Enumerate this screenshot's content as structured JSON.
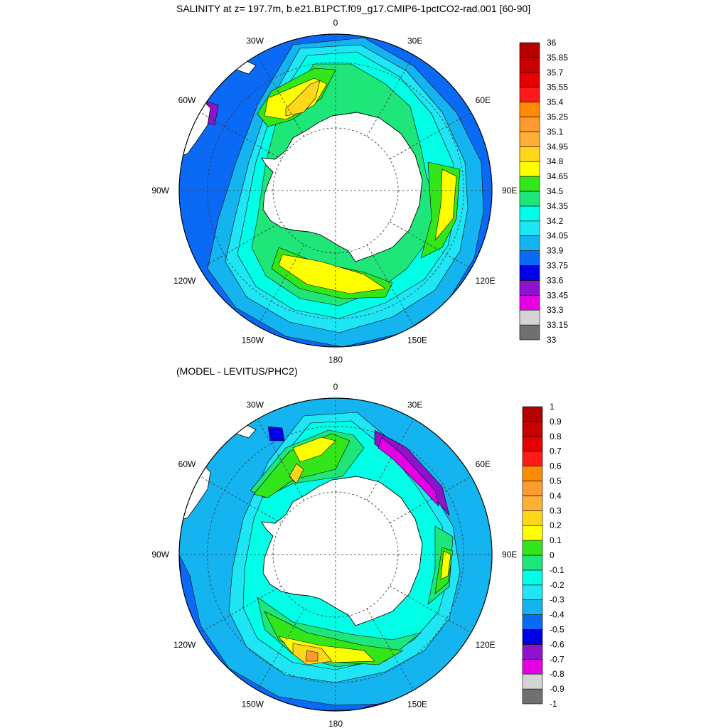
{
  "chart_data": [
    {
      "type": "heatmap",
      "projection": "south-polar-stereographic",
      "title": "SALINITY at z= 197.7m, b.e21.B1PCT.f09_g17.CMIP6-1pctCO2-rad.001 [60-90]",
      "lon_labels": [
        "0",
        "30E",
        "60E",
        "90E",
        "120E",
        "150E",
        "180",
        "150W",
        "120W",
        "90W",
        "60W",
        "30W"
      ],
      "colorbar": {
        "levels": [
          "33",
          "33.15",
          "33.3",
          "33.45",
          "33.6",
          "33.75",
          "33.9",
          "34.05",
          "34.2",
          "34.35",
          "34.5",
          "34.65",
          "34.8",
          "34.95",
          "35.1",
          "35.25",
          "35.4",
          "35.55",
          "35.7",
          "35.85",
          "36"
        ],
        "colors": [
          "#707070",
          "#d4d4d4",
          "#e600e6",
          "#8f12cf",
          "#0000e6",
          "#0a6af5",
          "#14b4f0",
          "#1ee6f5",
          "#00ffe6",
          "#1ee678",
          "#33e61a",
          "#ffff00",
          "#ffd71a",
          "#ffaf33",
          "#ff9a2e",
          "#ff8c00",
          "#ff1a1a",
          "#e60000",
          "#c80000",
          "#b40000"
        ],
        "range": [
          33,
          36
        ]
      },
      "legend_placement": "right",
      "grid": true,
      "field_summary": {
        "antarctic_shelf": "34.2",
        "weddell_gyre_max": "34.95",
        "ross_gyre": "34.65-34.8",
        "northern_rim": "33.75-33.9",
        "minimum_near_south_america": "33.45"
      }
    },
    {
      "type": "heatmap",
      "projection": "south-polar-stereographic",
      "title": "(MODEL - LEVITUS/PHC2)",
      "lon_labels": [
        "0",
        "30E",
        "60E",
        "90E",
        "120E",
        "150E",
        "180",
        "150W",
        "120W",
        "90W",
        "60W",
        "30W"
      ],
      "colorbar": {
        "levels": [
          "-1",
          "-0.9",
          "-0.8",
          "-0.7",
          "-0.6",
          "-0.5",
          "-0.4",
          "-0.3",
          "-0.2",
          "-0.1",
          "0",
          "0.1",
          "0.2",
          "0.3",
          "0.4",
          "0.5",
          "0.6",
          "0.7",
          "0.8",
          "0.9",
          "1"
        ],
        "colors": [
          "#707070",
          "#d4d4d4",
          "#e600e6",
          "#8f12cf",
          "#0000e6",
          "#0a6af5",
          "#14b4f0",
          "#1ee6f5",
          "#00ffe6",
          "#1ee678",
          "#33e61a",
          "#ffff00",
          "#ffd71a",
          "#ffaf33",
          "#ff9a2e",
          "#ff8c00",
          "#ff1a1a",
          "#e60000",
          "#c80000",
          "#b40000"
        ],
        "range": [
          -1,
          1
        ]
      },
      "legend_placement": "right",
      "grid": true,
      "field_summary": {
        "ross_sea_max": "0.3",
        "weddell_max": "0.3",
        "east_of_30E_min": "-0.8",
        "northern_rim_min": "-0.7"
      }
    }
  ]
}
